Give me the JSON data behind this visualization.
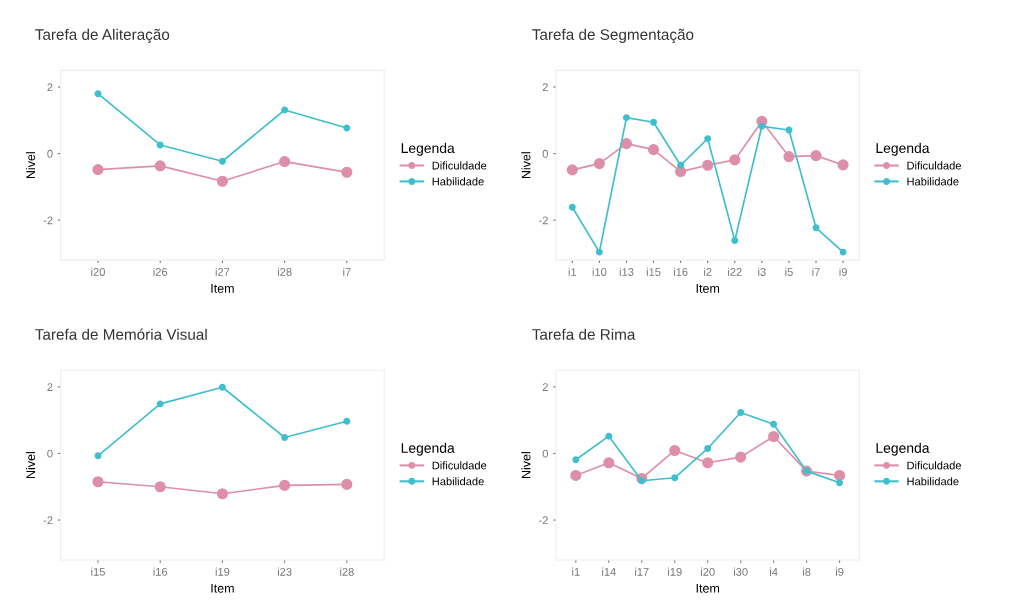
{
  "chart_data": [
    {
      "type": "line",
      "title": "Tarefa de Aliteração",
      "xlabel": "Item",
      "ylabel": "Nivel",
      "legend_title": "Legenda",
      "legend": "right",
      "marker": "circle",
      "grid": false,
      "ylim": [
        -3.2,
        2.5
      ],
      "yticks": [
        -2,
        0,
        2
      ],
      "categories": [
        "i20",
        "i26",
        "i27",
        "i28",
        "i7"
      ],
      "series": [
        {
          "name": "Dificuldade",
          "color": "#de8fa8",
          "values": [
            -0.48,
            -0.37,
            -0.83,
            -0.24,
            -0.56
          ]
        },
        {
          "name": "Habilidade",
          "color": "#3fbfcd",
          "values": [
            1.8,
            0.26,
            -0.23,
            1.31,
            0.77
          ]
        }
      ]
    },
    {
      "type": "line",
      "title": "Tarefa de Segmentação",
      "xlabel": "Item",
      "ylabel": "Nivel",
      "legend_title": "Legenda",
      "legend": "right",
      "marker": "circle",
      "grid": false,
      "ylim": [
        -3.2,
        2.5
      ],
      "yticks": [
        -2,
        0,
        2
      ],
      "categories": [
        "i1",
        "i10",
        "i13",
        "i15",
        "i16",
        "i2",
        "i22",
        "i3",
        "i5",
        "i7",
        "i9"
      ],
      "series": [
        {
          "name": "Dificuldade",
          "color": "#de8fa8",
          "values": [
            -0.49,
            -0.3,
            0.3,
            0.12,
            -0.54,
            -0.35,
            -0.19,
            0.97,
            -0.09,
            -0.06,
            -0.34
          ]
        },
        {
          "name": "Habilidade",
          "color": "#3fbfcd",
          "values": [
            -1.61,
            -2.96,
            1.08,
            0.94,
            -0.35,
            0.45,
            -2.61,
            0.82,
            0.71,
            -2.23,
            -2.96
          ]
        }
      ]
    },
    {
      "type": "line",
      "title": "Tarefa de Memória Visual",
      "xlabel": "Item",
      "ylabel": "Nivel",
      "legend_title": "Legenda",
      "legend": "right",
      "marker": "circle",
      "grid": false,
      "ylim": [
        -3.2,
        2.5
      ],
      "yticks": [
        -2,
        0,
        2
      ],
      "categories": [
        "i15",
        "i16",
        "i19",
        "i23",
        "i28"
      ],
      "series": [
        {
          "name": "Dificuldade",
          "color": "#de8fa8",
          "values": [
            -0.85,
            -1.0,
            -1.21,
            -0.96,
            -0.93
          ]
        },
        {
          "name": "Habilidade",
          "color": "#3fbfcd",
          "values": [
            -0.07,
            1.49,
            1.99,
            0.48,
            0.97
          ]
        }
      ]
    },
    {
      "type": "line",
      "title": "Tarefa de Rima",
      "xlabel": "Item",
      "ylabel": "Nivel",
      "legend_title": "Legenda",
      "legend": "right",
      "marker": "circle",
      "grid": false,
      "ylim": [
        -3.2,
        2.5
      ],
      "yticks": [
        -2,
        0,
        2
      ],
      "categories": [
        "i1",
        "i14",
        "i17",
        "i19",
        "i20",
        "i30",
        "i4",
        "i8",
        "i9"
      ],
      "series": [
        {
          "name": "Dificuldade",
          "color": "#de8fa8",
          "values": [
            -0.66,
            -0.28,
            -0.75,
            0.09,
            -0.28,
            -0.11,
            0.51,
            -0.53,
            -0.66
          ]
        },
        {
          "name": "Habilidade",
          "color": "#3fbfcd",
          "values": [
            -0.19,
            0.52,
            -0.82,
            -0.73,
            0.15,
            1.23,
            0.88,
            -0.53,
            -0.88
          ]
        }
      ]
    }
  ]
}
